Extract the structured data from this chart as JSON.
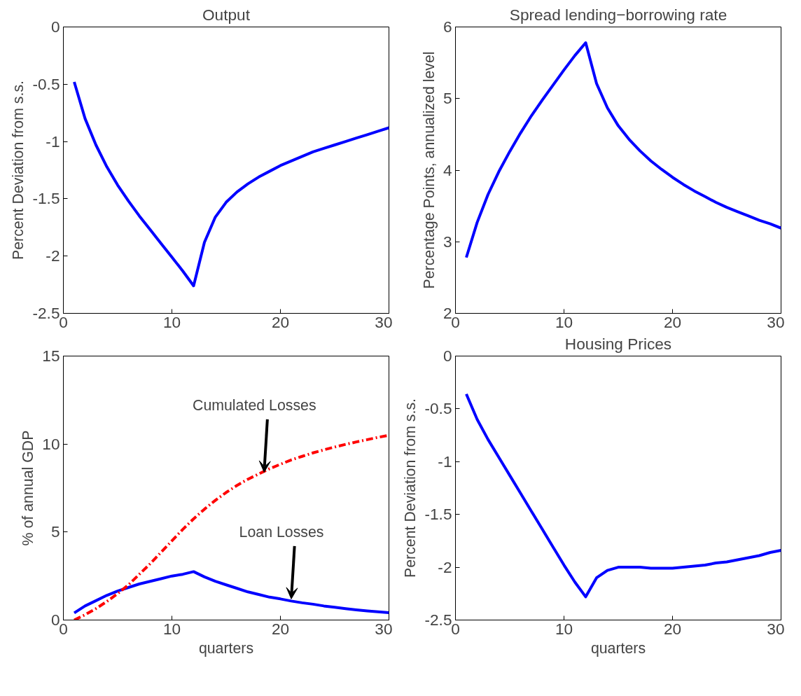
{
  "chart_data": [
    {
      "type": "line",
      "title": "Output",
      "ylabel": "Percent Deviation from s.s.",
      "xlim": [
        0,
        30
      ],
      "xticks": [
        0,
        10,
        20,
        30
      ],
      "ylim": [
        -2.5,
        0
      ],
      "yticks": [
        -2.5,
        -2,
        -1.5,
        -1,
        -0.5,
        0
      ],
      "grid": false,
      "line_style": "solid",
      "x": [
        1,
        2,
        3,
        4,
        5,
        6,
        7,
        8,
        9,
        10,
        11,
        12,
        13,
        14,
        15,
        16,
        17,
        18,
        19,
        20,
        21,
        22,
        23,
        24,
        25,
        26,
        27,
        28,
        29,
        30
      ],
      "series": [
        {
          "color": "#0000ff",
          "values": [
            -0.48,
            -0.8,
            -1.03,
            -1.22,
            -1.38,
            -1.52,
            -1.65,
            -1.77,
            -1.89,
            -2.01,
            -2.13,
            -2.26,
            -1.88,
            -1.66,
            -1.53,
            -1.44,
            -1.37,
            -1.31,
            -1.26,
            -1.21,
            -1.17,
            -1.13,
            -1.09,
            -1.06,
            -1.03,
            -1.0,
            -0.97,
            -0.94,
            -0.91,
            -0.88
          ]
        }
      ]
    },
    {
      "type": "line",
      "title": "Spread lending−borrowing rate",
      "ylabel": "Percentage Points, annualized level",
      "xlim": [
        0,
        30
      ],
      "xticks": [
        0,
        10,
        20,
        30
      ],
      "ylim": [
        2,
        6
      ],
      "yticks": [
        2,
        3,
        4,
        5,
        6
      ],
      "grid": false,
      "line_style": "solid",
      "x": [
        1,
        2,
        3,
        4,
        5,
        6,
        7,
        8,
        9,
        10,
        11,
        12,
        13,
        14,
        15,
        16,
        17,
        18,
        19,
        20,
        21,
        22,
        23,
        24,
        25,
        26,
        27,
        28,
        29,
        30
      ],
      "series": [
        {
          "color": "#0000ff",
          "values": [
            2.78,
            3.27,
            3.66,
            3.98,
            4.26,
            4.52,
            4.76,
            4.98,
            5.19,
            5.4,
            5.6,
            5.78,
            5.21,
            4.87,
            4.62,
            4.43,
            4.27,
            4.13,
            4.01,
            3.9,
            3.8,
            3.71,
            3.63,
            3.55,
            3.48,
            3.42,
            3.36,
            3.3,
            3.25,
            3.19
          ]
        }
      ]
    },
    {
      "type": "line",
      "xlabel": "quarters",
      "ylabel": "% of annual GDP",
      "xlim": [
        0,
        30
      ],
      "xticks": [
        0,
        10,
        20,
        30
      ],
      "ylim": [
        0,
        15
      ],
      "yticks": [
        0,
        5,
        10,
        15
      ],
      "grid": false,
      "x": [
        1,
        2,
        3,
        4,
        5,
        6,
        7,
        8,
        9,
        10,
        11,
        12,
        13,
        14,
        15,
        16,
        17,
        18,
        19,
        20,
        21,
        22,
        23,
        24,
        25,
        26,
        27,
        28,
        29,
        30
      ],
      "series": [
        {
          "color": "#0000ff",
          "line_style": "solid",
          "values": [
            0.4,
            0.8,
            1.1,
            1.4,
            1.65,
            1.85,
            2.05,
            2.2,
            2.35,
            2.5,
            2.6,
            2.75,
            2.45,
            2.2,
            2.0,
            1.8,
            1.6,
            1.45,
            1.3,
            1.2,
            1.08,
            0.98,
            0.9,
            0.8,
            0.73,
            0.65,
            0.58,
            0.52,
            0.47,
            0.42
          ]
        },
        {
          "color": "#ff0000",
          "line_style": "dashed",
          "values": [
            0.0,
            0.3,
            0.65,
            1.05,
            1.5,
            2.0,
            2.6,
            3.2,
            3.85,
            4.5,
            5.15,
            5.75,
            6.3,
            6.8,
            7.25,
            7.65,
            8.0,
            8.3,
            8.6,
            8.85,
            9.1,
            9.3,
            9.5,
            9.67,
            9.83,
            9.98,
            10.12,
            10.25,
            10.38,
            10.5
          ]
        }
      ],
      "annotations": [
        {
          "text": "Cumulated Losses",
          "x": 18.5,
          "y": 8.4
        },
        {
          "text": "Loan Losses",
          "x": 21,
          "y": 1.2
        }
      ]
    },
    {
      "type": "line",
      "title": "Housing Prices",
      "xlabel": "quarters",
      "ylabel": "Percent Deviation from s.s.",
      "xlim": [
        0,
        30
      ],
      "xticks": [
        0,
        10,
        20,
        30
      ],
      "ylim": [
        -2.5,
        0
      ],
      "yticks": [
        -2.5,
        -2,
        -1.5,
        -1,
        -0.5,
        0
      ],
      "grid": false,
      "line_style": "solid",
      "x": [
        1,
        2,
        3,
        4,
        5,
        6,
        7,
        8,
        9,
        10,
        11,
        12,
        13,
        14,
        15,
        16,
        17,
        18,
        19,
        20,
        21,
        22,
        23,
        24,
        25,
        26,
        27,
        28,
        29,
        30
      ],
      "series": [
        {
          "color": "#0000ff",
          "values": [
            -0.36,
            -0.6,
            -0.79,
            -0.96,
            -1.13,
            -1.3,
            -1.47,
            -1.64,
            -1.81,
            -1.98,
            -2.14,
            -2.28,
            -2.1,
            -2.03,
            -2.0,
            -2.0,
            -2.0,
            -2.01,
            -2.01,
            -2.01,
            -2.0,
            -1.99,
            -1.98,
            -1.96,
            -1.95,
            -1.93,
            -1.91,
            -1.89,
            -1.86,
            -1.84
          ]
        }
      ]
    }
  ]
}
